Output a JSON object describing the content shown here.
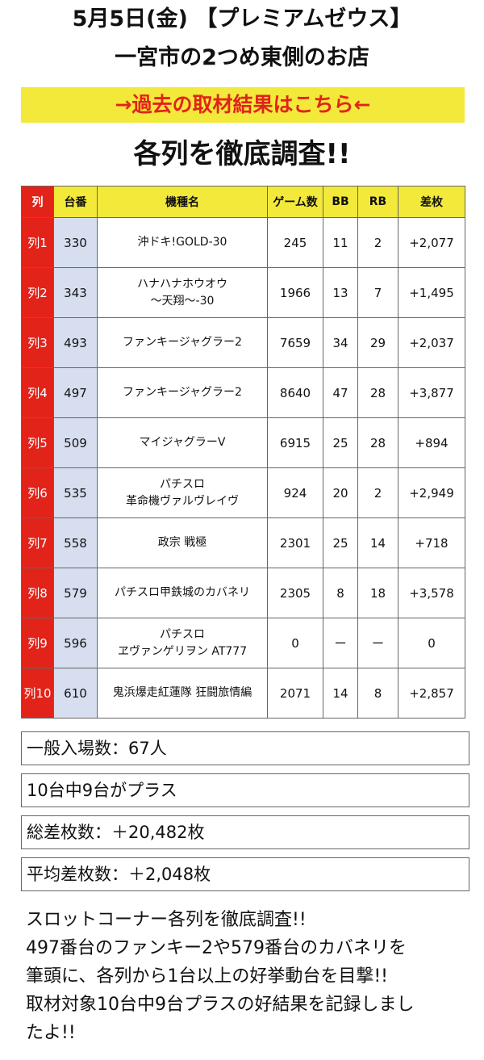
{
  "header": {
    "title_line1": "5月5日(金) 【プレミアムゼウス】",
    "title_line2": "一宮市の2つめ東側のお店"
  },
  "banner": {
    "link_label": "→過去の取材結果はこちら←",
    "bg_color": "#f2e93a",
    "text_color": "#e2231a"
  },
  "section_heading": "各列を徹底調査!!",
  "table": {
    "headers": [
      "列",
      "台番",
      "機種名",
      "ゲーム数",
      "BB",
      "RB",
      "差枚"
    ],
    "rows": [
      {
        "row": "列1",
        "number": "330",
        "model": "沖ドキ!GOLD-30",
        "games": "245",
        "bb": "11",
        "rb": "2",
        "diff": "+2,077"
      },
      {
        "row": "列2",
        "number": "343",
        "model": "ハナハナホウオウ\n～天翔～-30",
        "games": "1966",
        "bb": "13",
        "rb": "7",
        "diff": "+1,495"
      },
      {
        "row": "列3",
        "number": "493",
        "model": "ファンキージャグラー2",
        "games": "7659",
        "bb": "34",
        "rb": "29",
        "diff": "+2,037"
      },
      {
        "row": "列4",
        "number": "497",
        "model": "ファンキージャグラー2",
        "games": "8640",
        "bb": "47",
        "rb": "28",
        "diff": "+3,877"
      },
      {
        "row": "列5",
        "number": "509",
        "model": "マイジャグラーV",
        "games": "6915",
        "bb": "25",
        "rb": "28",
        "diff": "+894"
      },
      {
        "row": "列6",
        "number": "535",
        "model": "パチスロ\n革命機ヴァルヴレイヴ",
        "games": "924",
        "bb": "20",
        "rb": "2",
        "diff": "+2,949"
      },
      {
        "row": "列7",
        "number": "558",
        "model": "政宗 戦極",
        "games": "2301",
        "bb": "25",
        "rb": "14",
        "diff": "+718"
      },
      {
        "row": "列8",
        "number": "579",
        "model": "パチスロ甲鉄城のカバネリ",
        "games": "2305",
        "bb": "8",
        "rb": "18",
        "diff": "+3,578"
      },
      {
        "row": "列9",
        "number": "596",
        "model": "パチスロ\nヱヴァンゲリヲン AT777",
        "games": "0",
        "bb": "ー",
        "rb": "ー",
        "diff": "0"
      },
      {
        "row": "列10",
        "number": "610",
        "model": "鬼浜爆走紅蓮隊 狂闘旅情編",
        "games": "2071",
        "bb": "14",
        "rb": "8",
        "diff": "+2,857"
      }
    ]
  },
  "summary": {
    "attendance": "一般入場数：67人",
    "plus_count": "10台中9台がプラス",
    "total_diff": "総差枚数：＋20,482枚",
    "average_diff": "平均差枚数：＋2,048枚"
  },
  "description": {
    "line1": "スロットコーナー各列を徹底調査!!",
    "line2": "497番台のファンキー2や579番台のカバネリを",
    "line3": "筆頭に、各列から1台以上の好挙動台を目撃!!",
    "line4": "取材対象10台中9台プラスの好結果を記録しまし",
    "line5": "たよ!!"
  }
}
